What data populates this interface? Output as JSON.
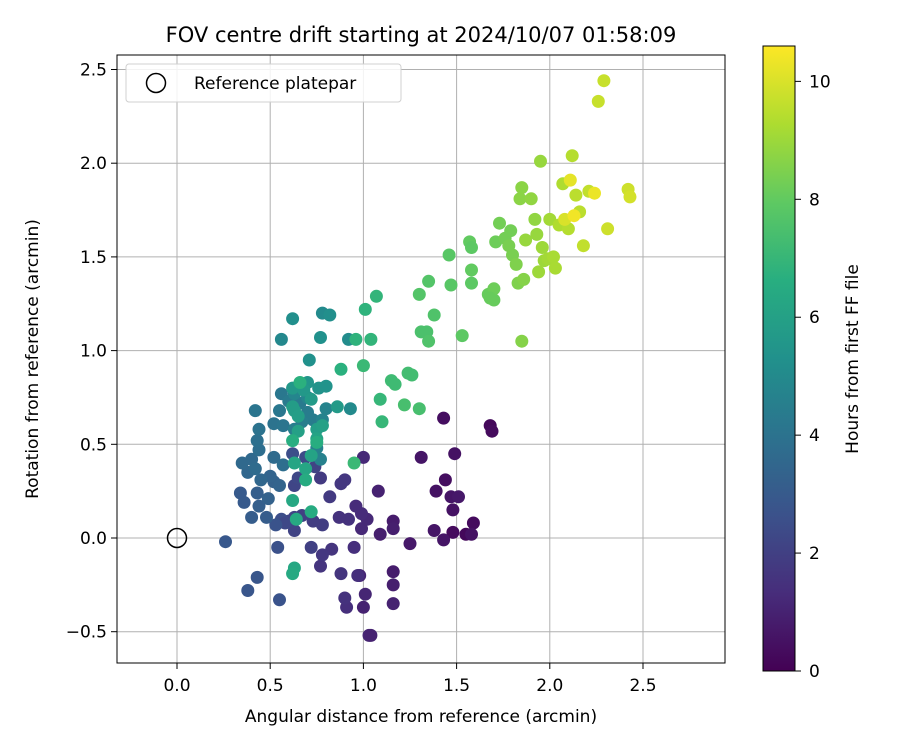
{
  "chart_data": {
    "type": "scatter",
    "title": "FOV centre drift starting at 2024/10/07 01:58:09",
    "xlabel": "Angular distance from reference (arcmin)",
    "ylabel": "Rotation from reference (arcmin)",
    "xlim": [
      -0.32,
      2.93
    ],
    "ylim": [
      -0.67,
      2.6
    ],
    "xticks": [
      0.0,
      0.5,
      1.0,
      1.5,
      2.0,
      2.5
    ],
    "xtick_labels": [
      "0.0",
      "0.5",
      "1.0",
      "1.5",
      "2.0",
      "2.5"
    ],
    "yticks": [
      -0.5,
      0.0,
      0.5,
      1.0,
      1.5,
      2.0,
      2.5
    ],
    "ytick_labels": [
      "−0.5",
      "0.0",
      "0.5",
      "1.0",
      "1.5",
      "2.0",
      "2.5"
    ],
    "grid": true,
    "legend": {
      "position": "top-left",
      "entries": [
        {
          "label": "Reference platepar",
          "marker": "open-circle",
          "x": 0.0,
          "y": 0.0
        }
      ]
    },
    "colorbar": {
      "label": "Hours from first FF file",
      "colormap": "viridis",
      "range": [
        0,
        10.6
      ],
      "ticks": [
        0,
        2,
        4,
        6,
        8,
        10
      ],
      "tick_labels": [
        "0",
        "2",
        "4",
        "6",
        "8",
        "10"
      ]
    },
    "points": [
      {
        "x": 1.68,
        "y": 0.6,
        "h": 0.2
      },
      {
        "x": 1.69,
        "y": 0.57,
        "h": 0.3
      },
      {
        "x": 1.43,
        "y": 0.64,
        "h": 0.4
      },
      {
        "x": 1.59,
        "y": 0.08,
        "h": 0.3
      },
      {
        "x": 1.55,
        "y": 0.02,
        "h": 0.2
      },
      {
        "x": 1.58,
        "y": 0.02,
        "h": 0.5
      },
      {
        "x": 1.49,
        "y": 0.45,
        "h": 0.5
      },
      {
        "x": 1.48,
        "y": 0.03,
        "h": 0.3
      },
      {
        "x": 1.44,
        "y": 0.31,
        "h": 0.4
      },
      {
        "x": 1.43,
        "y": -0.01,
        "h": 0.6
      },
      {
        "x": 1.38,
        "y": 0.04,
        "h": 0.6
      },
      {
        "x": 1.39,
        "y": 0.25,
        "h": 0.5
      },
      {
        "x": 1.47,
        "y": 0.22,
        "h": 0.6
      },
      {
        "x": 1.48,
        "y": 0.15,
        "h": 0.5
      },
      {
        "x": 1.51,
        "y": 0.22,
        "h": 0.7
      },
      {
        "x": 1.31,
        "y": 0.43,
        "h": 0.6
      },
      {
        "x": 1.25,
        "y": -0.03,
        "h": 0.7
      },
      {
        "x": 1.16,
        "y": 0.09,
        "h": 0.8
      },
      {
        "x": 1.16,
        "y": 0.05,
        "h": 0.9
      },
      {
        "x": 1.09,
        "y": 0.02,
        "h": 0.9
      },
      {
        "x": 1.08,
        "y": 0.25,
        "h": 1.0
      },
      {
        "x": 1.16,
        "y": -0.18,
        "h": 0.8
      },
      {
        "x": 1.16,
        "y": -0.25,
        "h": 0.9
      },
      {
        "x": 1.16,
        "y": -0.35,
        "h": 1.0
      },
      {
        "x": 1.03,
        "y": -0.52,
        "h": 1.1
      },
      {
        "x": 1.04,
        "y": -0.52,
        "h": 1.0
      },
      {
        "x": 1.0,
        "y": -0.37,
        "h": 1.0
      },
      {
        "x": 0.98,
        "y": -0.2,
        "h": 1.1
      },
      {
        "x": 1.01,
        "y": -0.3,
        "h": 1.1
      },
      {
        "x": 1.0,
        "y": 0.43,
        "h": 1.2
      },
      {
        "x": 0.99,
        "y": 0.05,
        "h": 1.2
      },
      {
        "x": 1.02,
        "y": 0.1,
        "h": 1.2
      },
      {
        "x": 0.96,
        "y": 0.17,
        "h": 1.3
      },
      {
        "x": 0.99,
        "y": 0.13,
        "h": 1.3
      },
      {
        "x": 0.95,
        "y": -0.05,
        "h": 1.4
      },
      {
        "x": 0.97,
        "y": -0.2,
        "h": 1.4
      },
      {
        "x": 0.91,
        "y": -0.37,
        "h": 1.4
      },
      {
        "x": 0.9,
        "y": -0.32,
        "h": 1.5
      },
      {
        "x": 0.92,
        "y": 0.1,
        "h": 1.5
      },
      {
        "x": 0.87,
        "y": 0.11,
        "h": 1.5
      },
      {
        "x": 0.88,
        "y": -0.19,
        "h": 1.6
      },
      {
        "x": 0.83,
        "y": -0.06,
        "h": 1.6
      },
      {
        "x": 0.77,
        "y": -0.15,
        "h": 1.6
      },
      {
        "x": 0.78,
        "y": -0.09,
        "h": 1.7
      },
      {
        "x": 0.9,
        "y": 0.31,
        "h": 1.7
      },
      {
        "x": 0.88,
        "y": 0.29,
        "h": 1.7
      },
      {
        "x": 0.82,
        "y": 0.22,
        "h": 1.8
      },
      {
        "x": 0.77,
        "y": 0.32,
        "h": 1.8
      },
      {
        "x": 0.78,
        "y": 0.07,
        "h": 1.9
      },
      {
        "x": 0.73,
        "y": 0.09,
        "h": 1.9
      },
      {
        "x": 0.72,
        "y": -0.05,
        "h": 2.0
      },
      {
        "x": 0.67,
        "y": 0.12,
        "h": 2.0
      },
      {
        "x": 0.63,
        "y": 0.11,
        "h": 2.1
      },
      {
        "x": 0.63,
        "y": 0.04,
        "h": 2.1
      },
      {
        "x": 0.6,
        "y": 0.09,
        "h": 2.2
      },
      {
        "x": 0.63,
        "y": 0.28,
        "h": 2.2
      },
      {
        "x": 0.65,
        "y": 0.32,
        "h": 2.3
      },
      {
        "x": 0.74,
        "y": 0.38,
        "h": 2.1
      },
      {
        "x": 0.69,
        "y": 0.43,
        "h": 2.4
      },
      {
        "x": 0.62,
        "y": 0.45,
        "h": 2.5
      },
      {
        "x": 0.56,
        "y": 0.1,
        "h": 2.5
      },
      {
        "x": 0.58,
        "y": 0.08,
        "h": 2.3
      },
      {
        "x": 0.54,
        "y": -0.05,
        "h": 2.6
      },
      {
        "x": 0.53,
        "y": 0.07,
        "h": 2.7
      },
      {
        "x": 0.55,
        "y": -0.33,
        "h": 2.7
      },
      {
        "x": 0.43,
        "y": -0.21,
        "h": 2.8
      },
      {
        "x": 0.38,
        "y": -0.28,
        "h": 2.8
      },
      {
        "x": 0.26,
        "y": -0.02,
        "h": 2.9
      },
      {
        "x": 0.34,
        "y": 0.24,
        "h": 3.0
      },
      {
        "x": 0.36,
        "y": 0.19,
        "h": 3.0
      },
      {
        "x": 0.4,
        "y": 0.11,
        "h": 3.1
      },
      {
        "x": 0.48,
        "y": 0.11,
        "h": 3.1
      },
      {
        "x": 0.44,
        "y": 0.17,
        "h": 3.2
      },
      {
        "x": 0.43,
        "y": 0.24,
        "h": 3.2
      },
      {
        "x": 0.49,
        "y": 0.21,
        "h": 3.3
      },
      {
        "x": 0.52,
        "y": 0.3,
        "h": 3.3
      },
      {
        "x": 0.55,
        "y": 0.28,
        "h": 3.4
      },
      {
        "x": 0.5,
        "y": 0.33,
        "h": 3.4
      },
      {
        "x": 0.45,
        "y": 0.31,
        "h": 3.5
      },
      {
        "x": 0.38,
        "y": 0.35,
        "h": 3.5
      },
      {
        "x": 0.35,
        "y": 0.4,
        "h": 3.6
      },
      {
        "x": 0.4,
        "y": 0.42,
        "h": 3.6
      },
      {
        "x": 0.42,
        "y": 0.37,
        "h": 3.7
      },
      {
        "x": 0.52,
        "y": 0.43,
        "h": 3.7
      },
      {
        "x": 0.57,
        "y": 0.39,
        "h": 3.8
      },
      {
        "x": 0.44,
        "y": 0.47,
        "h": 3.8
      },
      {
        "x": 0.43,
        "y": 0.52,
        "h": 3.9
      },
      {
        "x": 0.44,
        "y": 0.58,
        "h": 4.0
      },
      {
        "x": 0.52,
        "y": 0.61,
        "h": 4.0
      },
      {
        "x": 0.57,
        "y": 0.6,
        "h": 4.1
      },
      {
        "x": 0.42,
        "y": 0.68,
        "h": 4.1
      },
      {
        "x": 0.55,
        "y": 0.68,
        "h": 4.2
      },
      {
        "x": 0.56,
        "y": 0.77,
        "h": 4.2
      },
      {
        "x": 0.6,
        "y": 0.73,
        "h": 4.3
      },
      {
        "x": 0.66,
        "y": 0.72,
        "h": 4.3
      },
      {
        "x": 0.7,
        "y": 0.67,
        "h": 4.4
      },
      {
        "x": 0.73,
        "y": 0.63,
        "h": 4.4
      },
      {
        "x": 0.67,
        "y": 0.62,
        "h": 4.5
      },
      {
        "x": 0.63,
        "y": 0.58,
        "h": 4.5
      },
      {
        "x": 0.75,
        "y": 0.48,
        "h": 4.6
      },
      {
        "x": 0.77,
        "y": 0.42,
        "h": 4.6
      },
      {
        "x": 0.78,
        "y": 0.63,
        "h": 4.7
      },
      {
        "x": 0.8,
        "y": 0.69,
        "h": 4.7
      },
      {
        "x": 0.7,
        "y": 0.75,
        "h": 4.8
      },
      {
        "x": 0.63,
        "y": 0.77,
        "h": 4.8
      },
      {
        "x": 0.56,
        "y": 1.06,
        "h": 4.9
      },
      {
        "x": 0.93,
        "y": 0.69,
        "h": 5.0
      },
      {
        "x": 0.78,
        "y": 1.2,
        "h": 5.0
      },
      {
        "x": 0.92,
        "y": 1.06,
        "h": 5.1
      },
      {
        "x": 0.82,
        "y": 1.19,
        "h": 5.2
      },
      {
        "x": 0.62,
        "y": 1.17,
        "h": 5.2
      },
      {
        "x": 0.71,
        "y": 0.95,
        "h": 5.3
      },
      {
        "x": 0.77,
        "y": 1.07,
        "h": 5.3
      },
      {
        "x": 0.8,
        "y": 0.81,
        "h": 5.4
      },
      {
        "x": 0.76,
        "y": 0.8,
        "h": 5.4
      },
      {
        "x": 0.7,
        "y": 0.83,
        "h": 5.5
      },
      {
        "x": 0.67,
        "y": 0.81,
        "h": 5.5
      },
      {
        "x": 0.62,
        "y": 0.8,
        "h": 5.6
      },
      {
        "x": 0.68,
        "y": 0.79,
        "h": 5.6
      },
      {
        "x": 0.72,
        "y": 0.74,
        "h": 5.7
      },
      {
        "x": 0.86,
        "y": 0.7,
        "h": 5.7
      },
      {
        "x": 0.62,
        "y": 0.7,
        "h": 5.8
      },
      {
        "x": 0.63,
        "y": 0.68,
        "h": 5.8
      },
      {
        "x": 0.65,
        "y": 0.65,
        "h": 5.9
      },
      {
        "x": 0.75,
        "y": 0.58,
        "h": 5.9
      },
      {
        "x": 0.78,
        "y": 0.6,
        "h": 6.0
      },
      {
        "x": 0.65,
        "y": 0.57,
        "h": 6.0
      },
      {
        "x": 0.75,
        "y": 0.53,
        "h": 6.1
      },
      {
        "x": 0.72,
        "y": 0.44,
        "h": 6.1
      },
      {
        "x": 0.69,
        "y": 0.37,
        "h": 6.2
      },
      {
        "x": 0.63,
        "y": 0.4,
        "h": 6.2
      },
      {
        "x": 0.62,
        "y": 0.2,
        "h": 6.3
      },
      {
        "x": 0.63,
        "y": -0.16,
        "h": 6.3
      },
      {
        "x": 0.62,
        "y": -0.19,
        "h": 6.4
      },
      {
        "x": 0.64,
        "y": 0.1,
        "h": 6.4
      },
      {
        "x": 0.72,
        "y": 0.14,
        "h": 6.5
      },
      {
        "x": 0.69,
        "y": 0.31,
        "h": 6.5
      },
      {
        "x": 0.62,
        "y": 0.52,
        "h": 6.6
      },
      {
        "x": 0.75,
        "y": 0.51,
        "h": 6.6
      },
      {
        "x": 0.66,
        "y": 0.83,
        "h": 6.7
      },
      {
        "x": 0.88,
        "y": 0.9,
        "h": 6.7
      },
      {
        "x": 0.96,
        "y": 1.06,
        "h": 6.8
      },
      {
        "x": 1.01,
        "y": 1.22,
        "h": 6.8
      },
      {
        "x": 1.04,
        "y": 1.06,
        "h": 6.9
      },
      {
        "x": 1.07,
        "y": 1.29,
        "h": 6.9
      },
      {
        "x": 1.09,
        "y": 0.74,
        "h": 7.0
      },
      {
        "x": 1.1,
        "y": 0.62,
        "h": 7.0
      },
      {
        "x": 1.0,
        "y": 0.92,
        "h": 7.1
      },
      {
        "x": 0.95,
        "y": 0.4,
        "h": 7.1
      },
      {
        "x": 1.15,
        "y": 0.84,
        "h": 7.2
      },
      {
        "x": 1.17,
        "y": 0.82,
        "h": 7.2
      },
      {
        "x": 1.24,
        "y": 0.88,
        "h": 7.3
      },
      {
        "x": 1.26,
        "y": 0.87,
        "h": 7.3
      },
      {
        "x": 1.22,
        "y": 0.71,
        "h": 7.4
      },
      {
        "x": 1.3,
        "y": 0.69,
        "h": 7.4
      },
      {
        "x": 1.31,
        "y": 1.1,
        "h": 7.5
      },
      {
        "x": 1.34,
        "y": 1.1,
        "h": 7.5
      },
      {
        "x": 1.35,
        "y": 1.05,
        "h": 7.6
      },
      {
        "x": 1.38,
        "y": 1.19,
        "h": 7.6
      },
      {
        "x": 1.3,
        "y": 1.3,
        "h": 7.7
      },
      {
        "x": 1.35,
        "y": 1.37,
        "h": 7.7
      },
      {
        "x": 1.47,
        "y": 1.35,
        "h": 7.8
      },
      {
        "x": 1.46,
        "y": 1.51,
        "h": 7.8
      },
      {
        "x": 1.53,
        "y": 1.08,
        "h": 7.9
      },
      {
        "x": 1.58,
        "y": 1.36,
        "h": 7.9
      },
      {
        "x": 1.58,
        "y": 1.43,
        "h": 8.0
      },
      {
        "x": 1.57,
        "y": 1.58,
        "h": 8.0
      },
      {
        "x": 1.67,
        "y": 1.3,
        "h": 8.1
      },
      {
        "x": 1.7,
        "y": 1.27,
        "h": 8.1
      },
      {
        "x": 1.7,
        "y": 1.33,
        "h": 8.2
      },
      {
        "x": 1.71,
        "y": 1.58,
        "h": 8.2
      },
      {
        "x": 1.73,
        "y": 1.68,
        "h": 8.3
      },
      {
        "x": 1.76,
        "y": 1.6,
        "h": 8.3
      },
      {
        "x": 1.78,
        "y": 1.56,
        "h": 8.4
      },
      {
        "x": 1.8,
        "y": 1.51,
        "h": 8.4
      },
      {
        "x": 1.82,
        "y": 1.46,
        "h": 8.5
      },
      {
        "x": 1.83,
        "y": 1.36,
        "h": 8.5
      },
      {
        "x": 1.85,
        "y": 1.05,
        "h": 8.6
      },
      {
        "x": 1.86,
        "y": 1.38,
        "h": 8.6
      },
      {
        "x": 1.84,
        "y": 1.81,
        "h": 8.7
      },
      {
        "x": 1.85,
        "y": 1.87,
        "h": 8.7
      },
      {
        "x": 1.9,
        "y": 1.81,
        "h": 8.8
      },
      {
        "x": 1.92,
        "y": 1.7,
        "h": 8.8
      },
      {
        "x": 1.93,
        "y": 1.62,
        "h": 8.9
      },
      {
        "x": 1.95,
        "y": 2.01,
        "h": 8.9
      },
      {
        "x": 1.96,
        "y": 1.55,
        "h": 9.0
      },
      {
        "x": 1.97,
        "y": 1.48,
        "h": 9.0
      },
      {
        "x": 1.99,
        "y": 1.49,
        "h": 9.1
      },
      {
        "x": 2.0,
        "y": 1.7,
        "h": 9.1
      },
      {
        "x": 2.02,
        "y": 1.5,
        "h": 9.2
      },
      {
        "x": 2.03,
        "y": 1.44,
        "h": 9.2
      },
      {
        "x": 2.05,
        "y": 1.67,
        "h": 9.3
      },
      {
        "x": 2.07,
        "y": 1.89,
        "h": 9.3
      },
      {
        "x": 2.1,
        "y": 1.65,
        "h": 9.4
      },
      {
        "x": 2.12,
        "y": 2.04,
        "h": 9.4
      },
      {
        "x": 2.14,
        "y": 1.83,
        "h": 9.5
      },
      {
        "x": 2.16,
        "y": 1.74,
        "h": 9.5
      },
      {
        "x": 2.18,
        "y": 1.56,
        "h": 9.6
      },
      {
        "x": 2.21,
        "y": 1.85,
        "h": 9.6
      },
      {
        "x": 2.26,
        "y": 2.33,
        "h": 9.7
      },
      {
        "x": 2.29,
        "y": 2.44,
        "h": 9.7
      },
      {
        "x": 2.31,
        "y": 1.65,
        "h": 9.8
      },
      {
        "x": 2.42,
        "y": 1.86,
        "h": 9.8
      },
      {
        "x": 2.43,
        "y": 1.82,
        "h": 9.9
      },
      {
        "x": 1.87,
        "y": 1.59,
        "h": 8.9
      },
      {
        "x": 1.94,
        "y": 1.42,
        "h": 9.0
      },
      {
        "x": 2.08,
        "y": 1.7,
        "h": 10.0
      },
      {
        "x": 2.11,
        "y": 1.91,
        "h": 10.2
      },
      {
        "x": 2.13,
        "y": 1.72,
        "h": 10.4
      },
      {
        "x": 2.24,
        "y": 1.84,
        "h": 10.3
      },
      {
        "x": 1.79,
        "y": 1.64,
        "h": 8.3
      },
      {
        "x": 1.68,
        "y": 1.28,
        "h": 8.1
      },
      {
        "x": 1.58,
        "y": 1.55,
        "h": 7.9
      }
    ]
  }
}
